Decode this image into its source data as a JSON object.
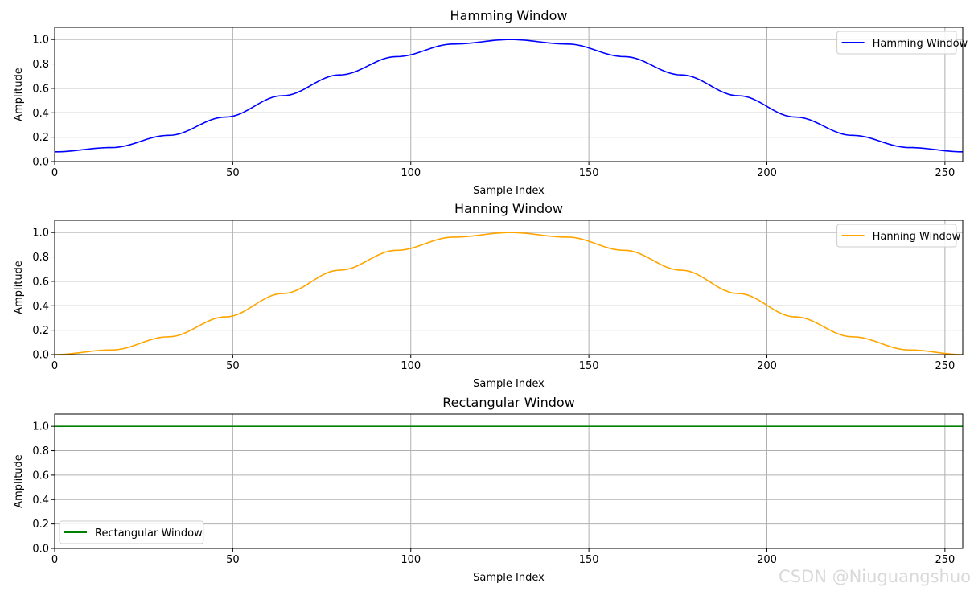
{
  "watermark": "CSDN @Niuguangshuo",
  "chart_data": [
    {
      "type": "line",
      "title": "Hamming Window",
      "xlabel": "Sample Index",
      "ylabel": "Amplitude",
      "xlim": [
        0,
        255
      ],
      "ylim": [
        0,
        1.1
      ],
      "xticks": [
        0,
        50,
        100,
        150,
        200,
        250
      ],
      "yticks": [
        0.0,
        0.2,
        0.4,
        0.6,
        0.8,
        1.0
      ],
      "grid": true,
      "legend": "top-right",
      "series": [
        {
          "name": "Hamming Window",
          "color": "#0000ff",
          "x": [
            0,
            16,
            32,
            48,
            64,
            80,
            96,
            112,
            128,
            144,
            160,
            176,
            192,
            208,
            224,
            240,
            255
          ],
          "values": [
            0.08,
            0.115,
            0.215,
            0.365,
            0.54,
            0.71,
            0.86,
            0.963,
            1.0,
            0.963,
            0.86,
            0.71,
            0.54,
            0.365,
            0.215,
            0.115,
            0.08
          ]
        }
      ]
    },
    {
      "type": "line",
      "title": "Hanning Window",
      "xlabel": "Sample Index",
      "ylabel": "Amplitude",
      "xlim": [
        0,
        255
      ],
      "ylim": [
        0,
        1.1
      ],
      "xticks": [
        0,
        50,
        100,
        150,
        200,
        250
      ],
      "yticks": [
        0.0,
        0.2,
        0.4,
        0.6,
        0.8,
        1.0
      ],
      "grid": true,
      "legend": "top-right",
      "series": [
        {
          "name": "Hanning Window",
          "color": "#ffa500",
          "x": [
            0,
            16,
            32,
            48,
            64,
            80,
            96,
            112,
            128,
            144,
            160,
            176,
            192,
            208,
            224,
            240,
            255
          ],
          "values": [
            0.0,
            0.038,
            0.146,
            0.309,
            0.5,
            0.691,
            0.854,
            0.962,
            1.0,
            0.962,
            0.854,
            0.691,
            0.5,
            0.309,
            0.146,
            0.038,
            0.0
          ]
        }
      ]
    },
    {
      "type": "line",
      "title": "Rectangular Window",
      "xlabel": "Sample Index",
      "ylabel": "Amplitude",
      "xlim": [
        0,
        255
      ],
      "ylim": [
        0,
        1.1
      ],
      "xticks": [
        0,
        50,
        100,
        150,
        200,
        250
      ],
      "yticks": [
        0.0,
        0.2,
        0.4,
        0.6,
        0.8,
        1.0
      ],
      "grid": true,
      "legend": "bottom-left",
      "series": [
        {
          "name": "Rectangular Window",
          "color": "#008000",
          "x": [
            0,
            255
          ],
          "values": [
            1.0,
            1.0
          ]
        }
      ]
    }
  ]
}
